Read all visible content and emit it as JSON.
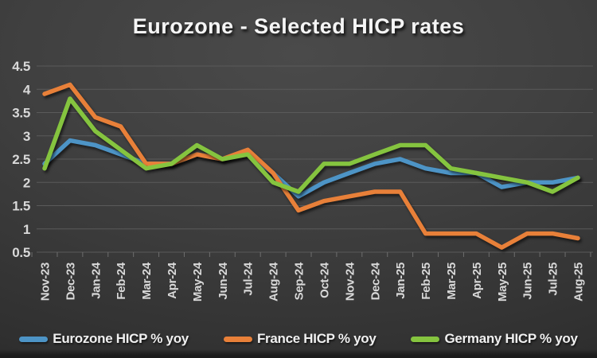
{
  "title": "Eurozone - Selected HICP rates",
  "chart_data": {
    "type": "line",
    "x": [
      "Nov-23",
      "Dec-23",
      "Jan-24",
      "Feb-24",
      "Mar-24",
      "Apr-24",
      "May-24",
      "Jun-24",
      "Jul-24",
      "Aug-24",
      "Sep-24",
      "Oct-24",
      "Nov-24",
      "Dec-24",
      "Jan-25",
      "Feb-25",
      "Mar-25",
      "Apr-25",
      "May-25",
      "Jun-25",
      "Jul-25",
      "Aug-25"
    ],
    "series": [
      {
        "name": "Eurozone HICP % yoy",
        "color": "#4d94c6",
        "values": [
          2.4,
          2.9,
          2.8,
          2.6,
          2.4,
          2.4,
          2.6,
          2.5,
          2.6,
          2.2,
          1.7,
          2.0,
          2.2,
          2.4,
          2.5,
          2.3,
          2.2,
          2.2,
          1.9,
          2.0,
          2.0,
          2.1
        ]
      },
      {
        "name": "France HICP % yoy",
        "color": "#e88039",
        "values": [
          3.9,
          4.1,
          3.4,
          3.2,
          2.4,
          2.4,
          2.6,
          2.5,
          2.7,
          2.2,
          1.4,
          1.6,
          1.7,
          1.8,
          1.8,
          0.9,
          0.9,
          0.9,
          0.6,
          0.9,
          0.9,
          0.8
        ]
      },
      {
        "name": "Germany HICP % yoy",
        "color": "#85c43f",
        "values": [
          2.3,
          3.8,
          3.1,
          2.7,
          2.3,
          2.4,
          2.8,
          2.5,
          2.6,
          2.0,
          1.8,
          2.4,
          2.4,
          2.6,
          2.8,
          2.8,
          2.3,
          2.2,
          2.1,
          2.0,
          1.8,
          2.1
        ]
      }
    ],
    "title": "Eurozone - Selected HICP rates",
    "xlabel": "",
    "ylabel": "",
    "ylim": [
      0.5,
      4.5
    ],
    "ytick_labels": [
      "4.5",
      "4",
      "3.5",
      "3",
      "2.5",
      "2",
      "1.5",
      "1",
      "0.5"
    ],
    "ytick_values": [
      4.5,
      4.0,
      3.5,
      3.0,
      2.5,
      2.0,
      1.5,
      1.0,
      0.5
    ],
    "grid": true,
    "legend_position": "bottom"
  }
}
